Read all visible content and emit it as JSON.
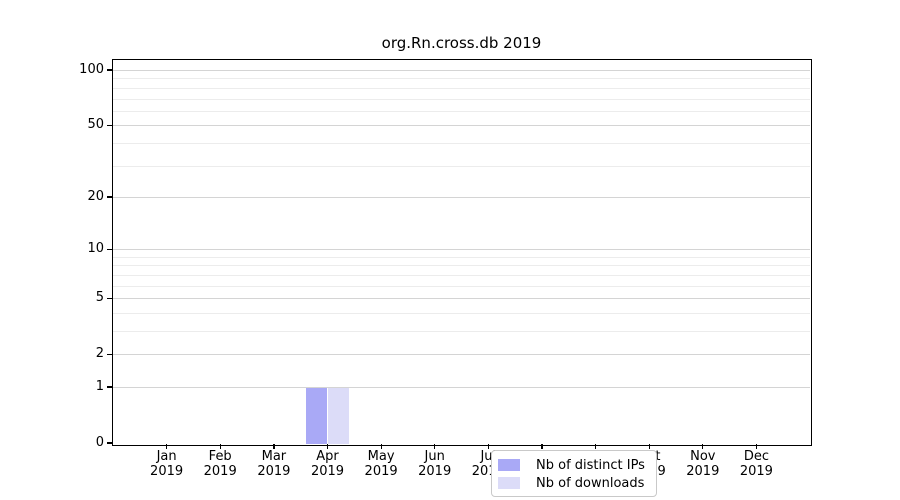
{
  "title": "org.Rn.cross.db 2019",
  "colors": {
    "distinct_ips": "#a9a9f6",
    "downloads": "#dcdcf8",
    "grid_major": "#d4d4d4",
    "grid_minor": "#ececec",
    "spine": "#000000",
    "legend_border": "#c9c9c9"
  },
  "chart_data": {
    "type": "bar",
    "title": "org.Rn.cross.db 2019",
    "xlabel": "",
    "ylabel": "",
    "categories": [
      "Jan 2019",
      "Feb 2019",
      "Mar 2019",
      "Apr 2019",
      "May 2019",
      "Jun 2019",
      "Jul 2019",
      "Aug 2019",
      "Sep 2019",
      "Oct 2019",
      "Nov 2019",
      "Dec 2019"
    ],
    "series": [
      {
        "name": "Nb of distinct IPs",
        "color": "#a9a9f6",
        "values": [
          0,
          0,
          0,
          1,
          0,
          0,
          0,
          0,
          0,
          0,
          0,
          0
        ]
      },
      {
        "name": "Nb of downloads",
        "color": "#dcdcf8",
        "values": [
          0,
          0,
          0,
          1,
          0,
          0,
          0,
          0,
          0,
          0,
          0,
          0
        ]
      }
    ],
    "yscale": "log1p",
    "ylim": [
      0,
      113
    ],
    "y_ticks_major": [
      100,
      50,
      20,
      10,
      5,
      2,
      1,
      0
    ],
    "y_ticks_minor": [
      90,
      80,
      70,
      60,
      40,
      30,
      9,
      8,
      7,
      6,
      4,
      3
    ],
    "grid": "horizontal",
    "legend_position": "bottom-center"
  },
  "legend": {
    "items": [
      {
        "label": "Nb of distinct IPs"
      },
      {
        "label": "Nb of downloads"
      }
    ]
  }
}
